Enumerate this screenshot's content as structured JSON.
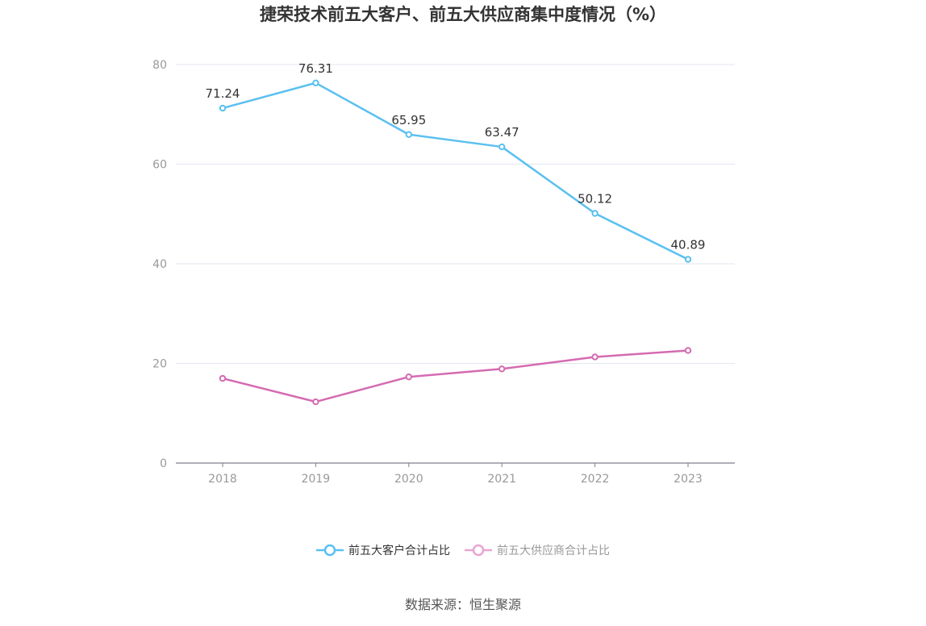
{
  "chart_data": {
    "type": "line",
    "title": "捷荣技术前五大客户、前五大供应商集中度情况（%）",
    "categories": [
      "2018",
      "2019",
      "2020",
      "2021",
      "2022",
      "2023"
    ],
    "series": [
      {
        "name": "前五大客户合计占比",
        "values": [
          71.24,
          76.31,
          65.95,
          63.47,
          50.12,
          40.89
        ],
        "color": "#5bc0f0",
        "show_labels": true
      },
      {
        "name": "前五大供应商合计占比",
        "values": [
          17.0,
          12.3,
          17.3,
          18.9,
          21.3,
          22.6
        ],
        "color": "#d46bb1",
        "legend_color": "#e8a6d2",
        "show_labels": false
      }
    ],
    "yticks": [
      0,
      20,
      40,
      60,
      80
    ],
    "ylim": [
      0,
      80
    ],
    "grid": true,
    "legend_position": "bottom-center"
  },
  "legend": {
    "items": [
      "前五大客户合计占比",
      "前五大供应商合计占比"
    ]
  },
  "source": "数据来源：恒生聚源"
}
